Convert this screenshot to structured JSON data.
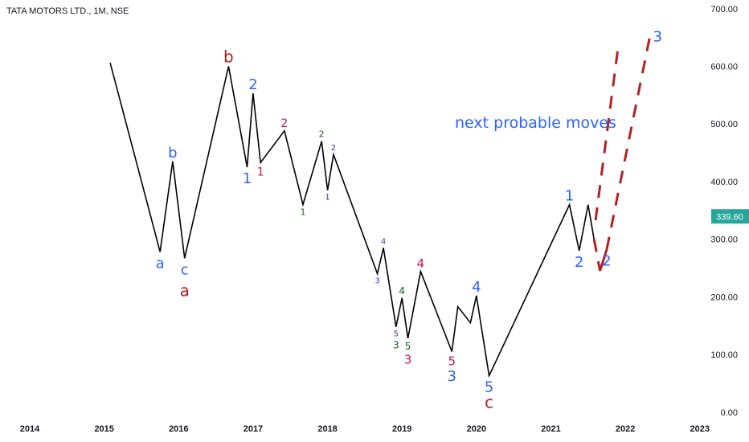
{
  "header": {
    "symbol_title": "TATA MOTORS LTD., 1M, NSE"
  },
  "colors": {
    "price_line": "#000000",
    "projection": "#b22222",
    "last_price_bg": "#26a69a",
    "blue": "#2962ff",
    "red": "#c2185b",
    "darkred": "#b71c1c",
    "green": "#1b5e20",
    "purple": "#5c2d91"
  },
  "chart_data": {
    "type": "line",
    "x_ticks": [
      "2014",
      "2015",
      "2016",
      "2017",
      "2018",
      "2019",
      "2020",
      "2021",
      "2022",
      "2023"
    ],
    "y_ticks": [
      "0.00",
      "100.00",
      "200.00",
      "300.00",
      "400.00",
      "500.00",
      "600.00",
      "700.00"
    ],
    "ylim": [
      -10,
      715
    ],
    "xlim": [
      2013.6,
      2023.1
    ],
    "last_price": "339.60",
    "series": [
      {
        "values": [
          [
            2015.08,
            606
          ],
          [
            2015.75,
            278
          ],
          [
            2015.92,
            435
          ],
          [
            2016.08,
            267
          ],
          [
            2016.67,
            600
          ],
          [
            2016.92,
            425
          ],
          [
            2017.0,
            553
          ],
          [
            2017.1,
            433
          ],
          [
            2017.42,
            488
          ],
          [
            2017.67,
            360
          ],
          [
            2017.92,
            470
          ],
          [
            2018.0,
            385
          ],
          [
            2018.08,
            447
          ],
          [
            2018.67,
            240
          ],
          [
            2018.75,
            285
          ],
          [
            2018.92,
            148
          ],
          [
            2019.0,
            198
          ],
          [
            2019.08,
            128
          ],
          [
            2019.25,
            244
          ],
          [
            2019.67,
            105
          ],
          [
            2019.75,
            183
          ],
          [
            2019.92,
            155
          ],
          [
            2020.0,
            202
          ],
          [
            2020.17,
            63
          ],
          [
            2021.25,
            360
          ],
          [
            2021.38,
            280
          ],
          [
            2021.5,
            360
          ],
          [
            2021.58,
            300
          ]
        ]
      }
    ],
    "projection": [
      [
        [
          2021.6,
          333
        ],
        [
          2021.9,
          630
        ]
      ],
      [
        [
          2021.75,
          282
        ],
        [
          2022.33,
          652
        ]
      ]
    ],
    "annotations": [
      {
        "text": "a",
        "x": 2015.75,
        "y": 278,
        "pos": "below",
        "color": "blue",
        "size": 18
      },
      {
        "text": "b",
        "x": 2015.92,
        "y": 435,
        "pos": "above",
        "color": "blue",
        "size": 18
      },
      {
        "text": "c",
        "x": 2016.08,
        "y": 267,
        "pos": "below",
        "color": "blue",
        "size": 18
      },
      {
        "text": "a",
        "x": 2016.08,
        "y": 232,
        "pos": "below",
        "color": "darkred",
        "size": 20
      },
      {
        "text": "b",
        "x": 2016.67,
        "y": 600,
        "pos": "above",
        "color": "darkred",
        "size": 20
      },
      {
        "text": "1",
        "x": 2016.92,
        "y": 425,
        "pos": "below",
        "color": "blue",
        "size": 18
      },
      {
        "text": "2",
        "x": 2017.0,
        "y": 553,
        "pos": "above",
        "color": "blue",
        "size": 18
      },
      {
        "text": "1",
        "x": 2017.1,
        "y": 433,
        "pos": "below",
        "color": "red",
        "size": 14
      },
      {
        "text": "2",
        "x": 2017.42,
        "y": 488,
        "pos": "above",
        "color": "red",
        "size": 14
      },
      {
        "text": "1",
        "x": 2017.67,
        "y": 360,
        "pos": "below",
        "color": "green",
        "size": 11
      },
      {
        "text": "2",
        "x": 2017.92,
        "y": 470,
        "pos": "above",
        "color": "green",
        "size": 11
      },
      {
        "text": "1",
        "x": 2018.0,
        "y": 385,
        "pos": "below",
        "color": "purple",
        "size": 10
      },
      {
        "text": "2",
        "x": 2018.08,
        "y": 447,
        "pos": "above",
        "color": "purple",
        "size": 10
      },
      {
        "text": "3",
        "x": 2018.67,
        "y": 240,
        "pos": "below",
        "color": "purple",
        "size": 10
      },
      {
        "text": "4",
        "x": 2018.75,
        "y": 285,
        "pos": "above",
        "color": "purple",
        "size": 10
      },
      {
        "text": "5",
        "x": 2018.92,
        "y": 148,
        "pos": "below",
        "color": "purple",
        "size": 10
      },
      {
        "text": "3",
        "x": 2018.92,
        "y": 130,
        "pos": "below",
        "color": "green",
        "size": 12
      },
      {
        "text": "4",
        "x": 2019.0,
        "y": 198,
        "pos": "above",
        "color": "green",
        "size": 12
      },
      {
        "text": "5",
        "x": 2019.08,
        "y": 128,
        "pos": "below",
        "color": "green",
        "size": 12
      },
      {
        "text": "3",
        "x": 2019.08,
        "y": 108,
        "pos": "below",
        "color": "red",
        "size": 15
      },
      {
        "text": "4",
        "x": 2019.25,
        "y": 244,
        "pos": "above",
        "color": "red",
        "size": 15
      },
      {
        "text": "5",
        "x": 2019.67,
        "y": 105,
        "pos": "below",
        "color": "red",
        "size": 15
      },
      {
        "text": "3",
        "x": 2019.67,
        "y": 82,
        "pos": "below",
        "color": "blue",
        "size": 18
      },
      {
        "text": "4",
        "x": 2020.0,
        "y": 202,
        "pos": "above",
        "color": "blue",
        "size": 18
      },
      {
        "text": "5",
        "x": 2020.17,
        "y": 63,
        "pos": "below",
        "color": "blue",
        "size": 18
      },
      {
        "text": "c",
        "x": 2020.17,
        "y": 38,
        "pos": "below",
        "color": "darkred",
        "size": 20
      },
      {
        "text": "1",
        "x": 2021.25,
        "y": 360,
        "pos": "above",
        "color": "blue",
        "size": 18
      },
      {
        "text": "2",
        "x": 2021.38,
        "y": 280,
        "pos": "below",
        "color": "blue",
        "size": 18
      },
      {
        "text": "2",
        "x": 2021.75,
        "y": 282,
        "pos": "below",
        "color": "blue",
        "size": 18
      },
      {
        "text": "3",
        "x": 2022.33,
        "y": 652,
        "pos": "right",
        "color": "blue",
        "size": 18
      }
    ],
    "note": "next probable moves"
  }
}
